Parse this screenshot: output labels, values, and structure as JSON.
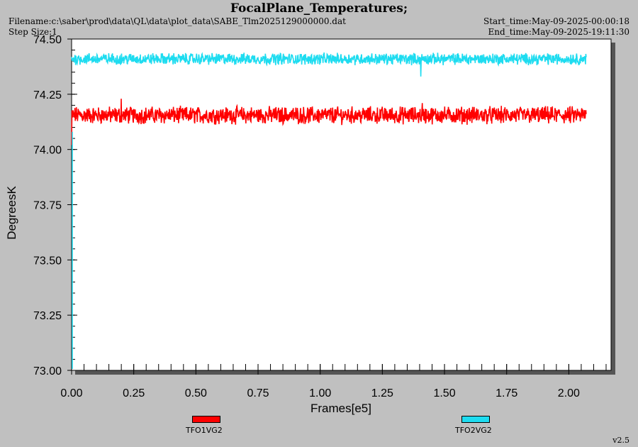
{
  "header": {
    "title": "FocalPlane_Temperatures;",
    "filename": "Filename:c:\\saber\\prod\\data\\QL\\data\\plot_data\\SABE_Tlm2025129000000.dat",
    "step_size": "Step Size:1",
    "start_time": "Start_time:May-09-2025-00:00:18",
    "end_time": "End_time:May-09-2025-19:11:30"
  },
  "footer": {
    "version": "v2.5"
  },
  "colors": {
    "background": "#c0c0c0",
    "plot_bg": "#ffffff",
    "series_red": "#ff0000",
    "series_cyan": "#1edcf0"
  },
  "chart_data": {
    "type": "line",
    "xlabel": "Frames[e5]",
    "ylabel": "DegreesK",
    "xlim": [
      0.0,
      2.17
    ],
    "ylim": [
      73.0,
      74.5
    ],
    "x_ticks": [
      "0.00",
      "0.25",
      "0.50",
      "0.75",
      "1.00",
      "1.25",
      "1.50",
      "1.75",
      "2.00"
    ],
    "y_ticks": [
      "73.00",
      "73.25",
      "73.50",
      "73.75",
      "74.00",
      "74.25",
      "74.50"
    ],
    "grid": false,
    "legend_position": "bottom",
    "series": [
      {
        "name": "TFO1VG2",
        "color": "#ff0000",
        "x_range": [
          0.0,
          2.07
        ],
        "mean": 74.165,
        "band": [
          74.11,
          74.2
        ],
        "spikes": [
          {
            "x": 0.2,
            "y": 74.23
          },
          {
            "x": 1.41,
            "y": 74.21
          }
        ],
        "initial_drop": {
          "x": 0.0,
          "y": 74.02
        }
      },
      {
        "name": "TFO2VG2",
        "color": "#1edcf0",
        "x_range": [
          0.0,
          2.07
        ],
        "mean": 74.41,
        "band": [
          74.38,
          74.44
        ],
        "spikes": [
          {
            "x": 1.405,
            "y": 74.33
          }
        ]
      }
    ]
  }
}
